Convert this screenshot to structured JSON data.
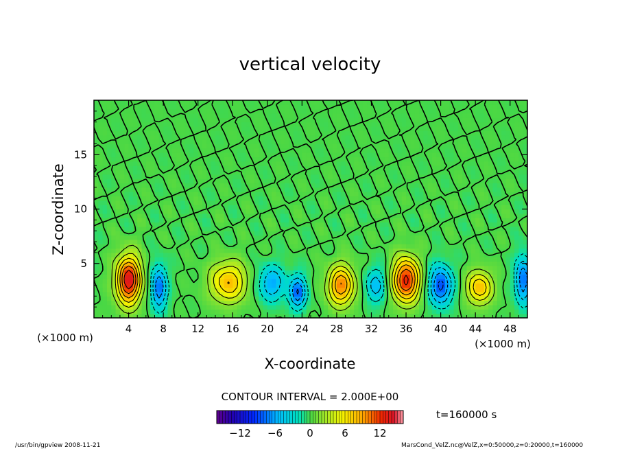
{
  "chart_data": {
    "type": "heatmap",
    "title": "vertical velocity",
    "xlabel": "X-coordinate",
    "ylabel": "Z-coordinate",
    "x_unit_left": "(×1000 m)",
    "x_unit_right": "(×1000 m)",
    "xlim": [
      0,
      50
    ],
    "ylim": [
      0,
      20
    ],
    "x_ticks": [
      4,
      8,
      12,
      16,
      20,
      24,
      28,
      32,
      36,
      40,
      44,
      48
    ],
    "y_ticks": [
      5,
      10,
      15
    ],
    "contour_interval_label": "CONTOUR INTERVAL = 2.000E+00",
    "time_label": "t=160000 s",
    "colorbar": {
      "min": -16,
      "max": 16,
      "ticks": [
        -12,
        -6,
        0,
        6,
        12
      ]
    },
    "cells": [
      {
        "x": 4,
        "z": 3.5,
        "w": 14,
        "sx": 1.4,
        "sz": 2.2
      },
      {
        "x": 7.5,
        "z": 2.8,
        "w": -8,
        "sx": 0.9,
        "sz": 2.0
      },
      {
        "x": 15.5,
        "z": 3.3,
        "w": 8,
        "sx": 2.0,
        "sz": 1.8
      },
      {
        "x": 20.5,
        "z": 3.2,
        "w": -6,
        "sx": 1.5,
        "sz": 1.6
      },
      {
        "x": 23.5,
        "z": 2.4,
        "w": -8,
        "sx": 1.0,
        "sz": 1.5
      },
      {
        "x": 28.5,
        "z": 3.0,
        "w": 10,
        "sx": 1.5,
        "sz": 1.8
      },
      {
        "x": 32.5,
        "z": 3.0,
        "w": -5,
        "sx": 1.2,
        "sz": 1.6
      },
      {
        "x": 36,
        "z": 3.5,
        "w": 13,
        "sx": 1.5,
        "sz": 2.0
      },
      {
        "x": 40,
        "z": 3.0,
        "w": -9,
        "sx": 1.3,
        "sz": 1.8
      },
      {
        "x": 44.5,
        "z": 2.8,
        "w": 8,
        "sx": 1.4,
        "sz": 1.5
      },
      {
        "x": 49.5,
        "z": 3.5,
        "w": -8,
        "sx": 0.9,
        "sz": 2.2
      }
    ]
  },
  "footer": {
    "left": "/usr/bin/gpview   2008-11-21",
    "right": "MarsCond_VelZ.nc@VelZ,x=0:50000,z=0:20000,t=160000"
  }
}
